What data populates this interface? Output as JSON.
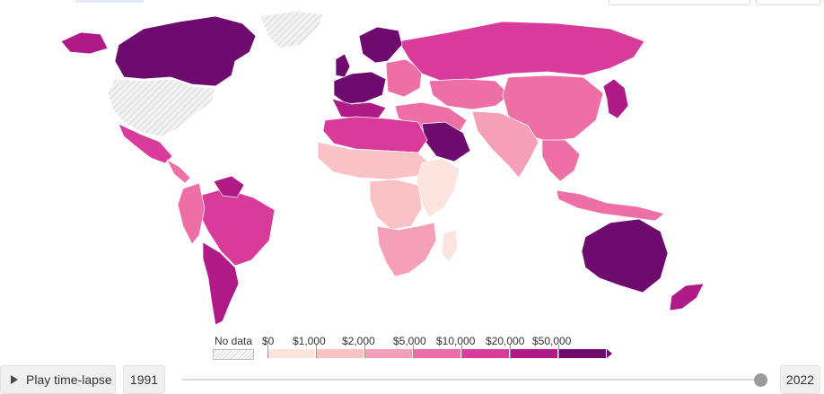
{
  "legend": {
    "no_data_label": "No data",
    "bins": [
      {
        "label": "$0",
        "color": "#fde4dc"
      },
      {
        "label": "$1,000",
        "color": "#f9c3c5"
      },
      {
        "label": "$2,000",
        "color": "#f5a0b7"
      },
      {
        "label": "$5,000",
        "color": "#ed6fa6"
      },
      {
        "label": "$10,000",
        "color": "#d93b9a"
      },
      {
        "label": "$20,000",
        "color": "#b01a87"
      },
      {
        "label": "$50,000",
        "color": "#6e0b6e"
      }
    ],
    "no_data_color": "#e9e9e9"
  },
  "timeline": {
    "play_label": "Play time-lapse",
    "start_year": "1991",
    "end_year": "2022",
    "selected_fraction": 1.0
  },
  "icons": {
    "play": "play-icon",
    "handle": "slider-handle"
  },
  "map": {
    "regions": [
      {
        "name": "canada",
        "bin": 6
      },
      {
        "name": "usa",
        "bin": -1
      },
      {
        "name": "greenland",
        "bin": -1
      },
      {
        "name": "alaska",
        "bin": 5
      },
      {
        "name": "mexico",
        "bin": 4
      },
      {
        "name": "central-america",
        "bin": 3
      },
      {
        "name": "brazil",
        "bin": 4
      },
      {
        "name": "argentina-chile",
        "bin": 5
      },
      {
        "name": "andes",
        "bin": 3
      },
      {
        "name": "guianas",
        "bin": 5
      },
      {
        "name": "western-europe",
        "bin": 6
      },
      {
        "name": "southern-europe",
        "bin": 5
      },
      {
        "name": "eastern-europe",
        "bin": 3
      },
      {
        "name": "russia",
        "bin": 4
      },
      {
        "name": "central-asia",
        "bin": 3
      },
      {
        "name": "china",
        "bin": 3
      },
      {
        "name": "india",
        "bin": 2
      },
      {
        "name": "japan-korea",
        "bin": 5
      },
      {
        "name": "middle-east",
        "bin": 3
      },
      {
        "name": "saudi-gulf",
        "bin": 6
      },
      {
        "name": "north-africa",
        "bin": 4
      },
      {
        "name": "sahel",
        "bin": 1
      },
      {
        "name": "east-africa",
        "bin": 0
      },
      {
        "name": "central-africa",
        "bin": 1
      },
      {
        "name": "southern-africa",
        "bin": 2
      },
      {
        "name": "southeast-asia",
        "bin": 3
      },
      {
        "name": "indonesia",
        "bin": 3
      },
      {
        "name": "australia",
        "bin": 6
      },
      {
        "name": "new-zealand",
        "bin": 5
      },
      {
        "name": "madagascar",
        "bin": 0
      },
      {
        "name": "scandinavia",
        "bin": 6
      },
      {
        "name": "uk-ireland",
        "bin": 6
      }
    ]
  }
}
